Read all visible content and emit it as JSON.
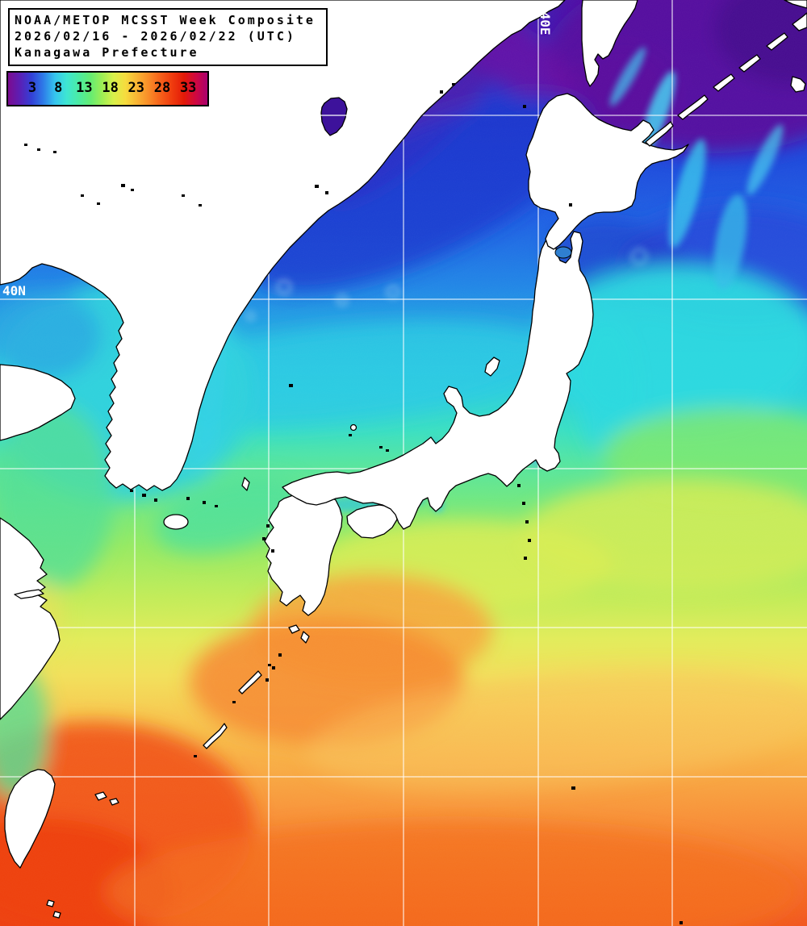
{
  "header": {
    "line1": "NOAA/METOP MCSST Week Composite",
    "line2": "2026/02/16 - 2026/02/22 (UTC)",
    "line3": "Kanagawa Prefecture"
  },
  "colorbar": {
    "ticks": [
      "3",
      "8",
      "13",
      "18",
      "23",
      "28",
      "33"
    ],
    "unit_implied": "deg C",
    "palette": [
      "#7C0C90",
      "#5B1FB5",
      "#3340D6",
      "#2E7BE8",
      "#35C4EE",
      "#3EE6D2",
      "#4BEBA4",
      "#63EC74",
      "#9CEF55",
      "#D8F04A",
      "#F6DC3E",
      "#F9B434",
      "#F98C28",
      "#F6601A",
      "#EF3B0E",
      "#E31A08",
      "#D00840",
      "#A8006E"
    ]
  },
  "grid_labels": {
    "longitude": "140E",
    "latitude": "40N"
  },
  "map_colors": {
    "land": "#ffffff",
    "coastline": "#000000",
    "grid_line": "#ffffff",
    "cold_sea": "#4A14A8",
    "warm_sea": "#F2571E"
  }
}
